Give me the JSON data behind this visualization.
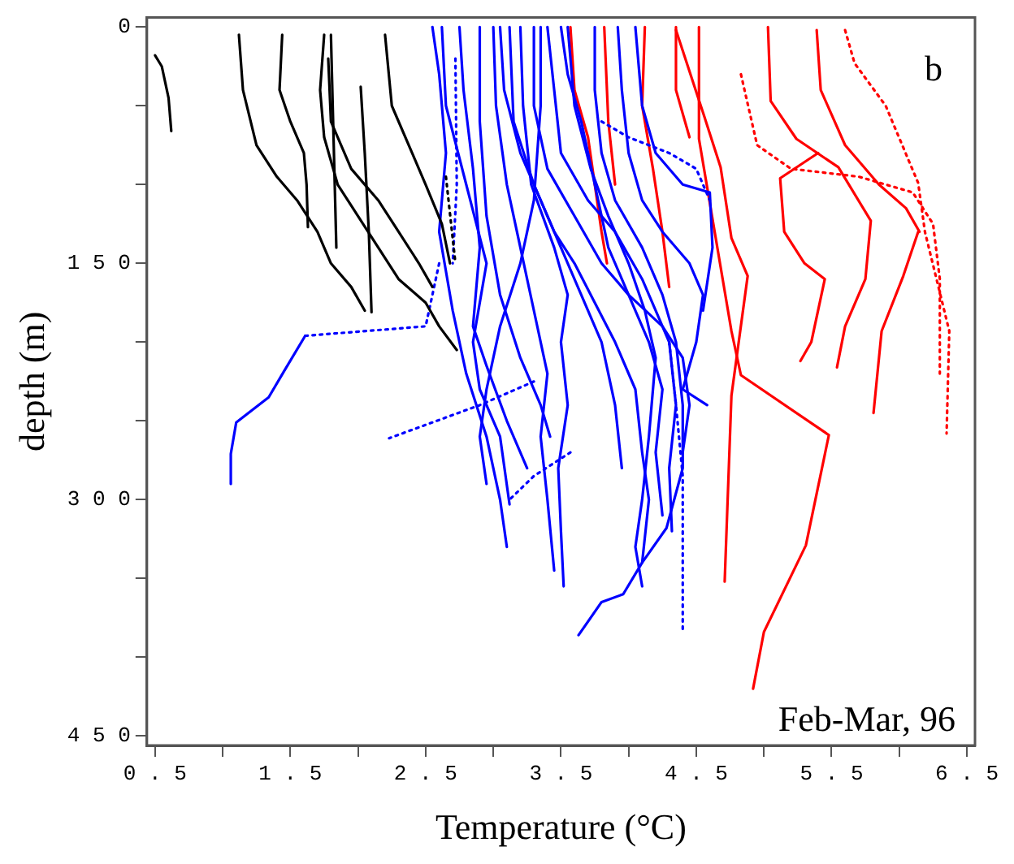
{
  "chart_data": {
    "type": "line",
    "xlabel": "Temperature (°C)",
    "ylabel": "depth (m)",
    "annotations": [
      "b",
      "Feb-Mar, 96"
    ],
    "xlim": [
      0.44,
      6.56
    ],
    "ylim": [
      456,
      -6
    ],
    "xticks": [
      0.5,
      {
        "value": 1,
        "label": null
      },
      1.5,
      {
        "value": 2,
        "label": null
      },
      2.5,
      {
        "value": 3,
        "label": null
      },
      3.5,
      {
        "value": 4,
        "label": null
      },
      4.5,
      {
        "value": 5,
        "label": null
      },
      5.5,
      {
        "value": 6,
        "label": null
      },
      6.5
    ],
    "yticks": [
      0,
      {
        "value": 50,
        "label": null
      },
      {
        "value": 100,
        "label": null
      },
      150,
      {
        "value": 200,
        "label": null
      },
      {
        "value": 250,
        "label": null
      },
      300,
      {
        "value": 350,
        "label": null
      },
      {
        "value": 400,
        "label": null
      },
      450
    ],
    "grid": false,
    "legend": false,
    "marker": "none",
    "line_style": "solid",
    "series": [
      {
        "color": "#000000",
        "x": [
          0.5,
          0.55,
          0.6,
          0.62
        ],
        "values": [
          18,
          25,
          45,
          66
        ]
      },
      {
        "color": "#000000",
        "x": [
          1.12,
          1.15,
          1.25,
          1.4,
          1.55,
          1.7,
          1.8,
          1.95,
          2.05
        ],
        "values": [
          5,
          40,
          75,
          95,
          110,
          130,
          150,
          165,
          180
        ]
      },
      {
        "color": "#000000",
        "x": [
          1.44,
          1.42,
          1.5,
          1.6,
          1.62,
          1.63
        ],
        "values": [
          5,
          40,
          60,
          80,
          100,
          127
        ]
      },
      {
        "color": "#000000",
        "x": [
          1.75,
          1.72,
          1.75,
          1.85,
          2.0,
          2.15,
          2.3,
          2.5,
          2.6,
          2.73
        ],
        "values": [
          5,
          40,
          70,
          100,
          120,
          140,
          160,
          175,
          190,
          205
        ]
      },
      {
        "color": "#000000",
        "x": [
          1.8,
          1.84
        ],
        "values": [
          5,
          140
        ]
      },
      {
        "color": "#000000",
        "x": [
          2.02,
          2.05,
          2.08,
          2.1
        ],
        "values": [
          38,
          80,
          130,
          181
        ]
      },
      {
        "color": "#000000",
        "x": [
          2.2,
          2.25,
          2.4,
          2.5,
          2.62,
          2.68
        ],
        "values": [
          5,
          50,
          80,
          100,
          125,
          150
        ]
      },
      {
        "color": "#000000",
        "x": [
          1.78,
          1.8,
          1.95,
          2.15,
          2.3,
          2.45,
          2.55
        ],
        "values": [
          20,
          60,
          90,
          110,
          130,
          150,
          165
        ]
      },
      {
        "color": "#000000",
        "x": [
          2.65,
          2.72
        ],
        "values": [
          95,
          150
        ],
        "line_style": "dotted"
      },
      {
        "color": "#0000ff",
        "x": [
          1.61,
          1.45,
          1.34,
          1.1,
          1.06,
          1.06
        ],
        "values": [
          196,
          219,
          235,
          251,
          271,
          290
        ]
      },
      {
        "color": "#0000ff",
        "x": [
          2.6,
          2.5,
          1.61
        ],
        "values": [
          150,
          190,
          196
        ],
        "line_style": "dotted"
      },
      {
        "color": "#0000ff",
        "x": [
          3.3,
          2.9,
          2.23
        ],
        "values": [
          225,
          240,
          261
        ],
        "line_style": "dotted"
      },
      {
        "color": "#0000ff",
        "x": [
          2.62,
          2.65,
          2.8,
          2.95,
          2.85,
          2.9,
          3.05,
          3.12
        ],
        "values": [
          0,
          50,
          100,
          150,
          200,
          230,
          260,
          303
        ]
      },
      {
        "color": "#0000ff",
        "x": [
          2.75,
          2.78,
          2.85,
          2.9,
          2.85,
          2.95,
          3.1,
          3.25
        ],
        "values": [
          0,
          40,
          90,
          140,
          190,
          215,
          250,
          280
        ]
      },
      {
        "color": "#0000ff",
        "x": [
          2.9,
          2.9,
          2.95,
          3.05,
          3.2,
          3.35,
          3.42
        ],
        "values": [
          0,
          60,
          120,
          170,
          210,
          240,
          260
        ]
      },
      {
        "color": "#0000ff",
        "x": [
          3.0,
          3.02,
          3.1,
          3.2,
          3.3,
          3.4,
          3.35,
          3.4,
          3.45
        ],
        "values": [
          0,
          50,
          100,
          140,
          180,
          220,
          260,
          300,
          345
        ]
      },
      {
        "color": "#0000ff",
        "x": [
          3.05,
          3.08,
          3.2,
          3.35,
          3.5,
          3.65,
          3.8,
          3.9,
          3.95
        ],
        "values": [
          0,
          40,
          80,
          110,
          140,
          170,
          200,
          240,
          280
        ]
      },
      {
        "color": "#0000ff",
        "x": [
          3.12,
          3.15,
          3.3,
          3.45,
          3.6,
          3.75,
          3.9,
          4.05,
          4.1,
          4.15,
          4.1
        ],
        "values": [
          0,
          60,
          100,
          130,
          150,
          175,
          200,
          230,
          270,
          300,
          340
        ]
      },
      {
        "color": "#0000ff",
        "x": [
          3.2,
          3.22,
          3.28,
          3.45,
          3.55,
          3.5,
          3.55,
          3.48,
          3.5,
          3.52
        ],
        "values": [
          0,
          50,
          100,
          140,
          170,
          200,
          240,
          280,
          320,
          355
        ]
      },
      {
        "color": "#0000ff",
        "x": [
          3.3,
          3.3,
          3.4,
          3.6,
          3.8,
          4.0,
          4.15,
          4.25,
          4.2,
          4.25
        ],
        "values": [
          0,
          50,
          90,
          120,
          150,
          170,
          200,
          230,
          270,
          310
        ]
      },
      {
        "color": "#0000ff",
        "x": [
          3.4,
          3.45,
          3.5,
          3.7,
          3.9,
          4.1,
          4.2,
          4.3,
          4.35,
          4.3,
          4.32
        ],
        "values": [
          0,
          40,
          80,
          110,
          130,
          160,
          180,
          200,
          240,
          280,
          320
        ]
      },
      {
        "color": "#0000ff",
        "x": [
          3.5,
          3.55,
          3.65,
          3.75,
          3.85,
          4.0,
          4.25,
          4.4,
          4.45,
          4.4
        ],
        "values": [
          0,
          30,
          60,
          100,
          140,
          170,
          190,
          210,
          240,
          270
        ]
      },
      {
        "color": "#0000ff",
        "x": [
          3.75,
          3.75,
          3.8,
          3.9,
          4.1,
          4.25,
          4.35,
          4.4,
          4.4,
          4.28,
          4.1,
          3.96,
          3.8,
          3.63
        ],
        "values": [
          0,
          40,
          80,
          110,
          140,
          170,
          200,
          240,
          280,
          318,
          340,
          360,
          365,
          386
        ]
      },
      {
        "color": "#0000ff",
        "x": [
          3.92,
          3.95,
          4.0,
          4.1,
          4.25,
          4.45,
          4.55,
          4.5,
          4.4,
          4.58
        ],
        "values": [
          0,
          40,
          80,
          110,
          130,
          150,
          170,
          200,
          230,
          240
        ]
      },
      {
        "color": "#0000ff",
        "x": [
          4.05,
          4.1,
          4.2,
          4.4,
          4.6,
          4.62,
          4.55
        ],
        "values": [
          0,
          50,
          80,
          100,
          105,
          140,
          180
        ]
      },
      {
        "color": "#0000ff",
        "x": [
          2.55,
          2.6,
          2.65,
          2.6,
          2.7,
          2.8,
          2.95,
          3.05,
          3.1
        ],
        "values": [
          0,
          30,
          80,
          130,
          180,
          220,
          260,
          300,
          330
        ]
      },
      {
        "color": "#0000ff",
        "x": [
          3.35,
          3.35,
          3.3,
          3.2,
          3.05,
          2.95,
          2.9,
          2.95
        ],
        "values": [
          0,
          50,
          110,
          150,
          190,
          230,
          260,
          290
        ]
      },
      {
        "color": "#0000ff",
        "x": [
          3.55,
          3.6,
          3.72,
          3.85,
          4.0,
          4.12,
          4.2,
          4.15,
          4.1,
          4.05,
          4.1
        ],
        "values": [
          0,
          50,
          90,
          120,
          150,
          180,
          210,
          260,
          300,
          330,
          355
        ]
      },
      {
        "color": "#0000ff",
        "x": [
          4.3,
          4.35,
          4.4,
          4.4
        ],
        "values": [
          200,
          240,
          285,
          382
        ],
        "line_style": "dotted"
      },
      {
        "color": "#0000ff",
        "x": [
          3.8,
          4.0,
          4.3,
          4.5,
          4.6
        ],
        "values": [
          60,
          70,
          80,
          90,
          110
        ],
        "line_style": "dotted"
      },
      {
        "color": "#0000ff",
        "x": [
          3.57,
          3.3,
          3.12
        ],
        "values": [
          270,
          285,
          300
        ],
        "line_style": "dotted"
      },
      {
        "color": "#0000ff",
        "x": [
          2.72,
          2.73,
          2.7
        ],
        "values": [
          20,
          100,
          150
        ],
        "line_style": "dotted"
      },
      {
        "color": "#ff0000",
        "x": [
          4.52,
          4.52,
          4.76,
          4.83,
          5.48,
          5.31,
          5.0,
          4.92
        ],
        "values": [
          0,
          71,
          193,
          221,
          259,
          329,
          384,
          420
        ]
      },
      {
        "color": "#ff0000",
        "x": [
          4.35,
          4.56,
          4.68,
          4.76,
          4.88,
          4.76,
          4.71
        ],
        "values": [
          2,
          57,
          89,
          134,
          158,
          234,
          352
        ]
      },
      {
        "color": "#ff0000",
        "x": [
          5.6,
          5.67,
          5.9,
          6.14,
          6.19,
          6.37,
          6.35
        ],
        "values": [
          2,
          23,
          50,
          99,
          130,
          193,
          258
        ],
        "line_style": "dotted"
      },
      {
        "color": "#ff0000",
        "x": [
          6.14,
          6.03,
          5.87,
          5.81
        ],
        "values": [
          130,
          158,
          193,
          245
        ]
      },
      {
        "color": "#ff0000",
        "x": [
          5.03,
          5.05,
          5.24,
          5.55,
          5.79,
          5.75,
          5.6,
          5.54
        ],
        "values": [
          0,
          47,
          71,
          89,
          123,
          160,
          190,
          216
        ]
      },
      {
        "color": "#ff0000",
        "x": [
          5.39,
          5.42,
          5.6,
          5.85,
          6.05,
          6.15
        ],
        "values": [
          2,
          40,
          75,
          100,
          115,
          130
        ]
      },
      {
        "color": "#ff0000",
        "x": [
          4.83,
          4.95,
          5.2,
          5.7,
          6.1,
          6.25,
          6.3,
          6.3
        ],
        "values": [
          30,
          75,
          90,
          95,
          105,
          125,
          160,
          220
        ],
        "line_style": "dotted"
      },
      {
        "color": "#ff0000",
        "x": [
          5.4,
          5.12,
          5.15,
          5.3,
          5.45,
          5.35,
          5.27
        ],
        "values": [
          80,
          96,
          130,
          150,
          160,
          200,
          212
        ]
      },
      {
        "color": "#ff0000",
        "x": [
          3.57,
          3.6,
          3.7,
          3.75,
          3.8,
          3.84
        ],
        "values": [
          0,
          40,
          70,
          100,
          130,
          150
        ]
      },
      {
        "color": "#ff0000",
        "x": [
          4.12,
          4.1,
          4.18,
          4.25,
          4.3
        ],
        "values": [
          0,
          50,
          90,
          130,
          165
        ]
      },
      {
        "color": "#ff0000",
        "x": [
          3.82,
          3.85,
          3.9
        ],
        "values": [
          0,
          60,
          100
        ]
      },
      {
        "color": "#ff0000",
        "x": [
          4.35,
          4.35,
          4.45
        ],
        "values": [
          0,
          40,
          70
        ]
      }
    ]
  }
}
